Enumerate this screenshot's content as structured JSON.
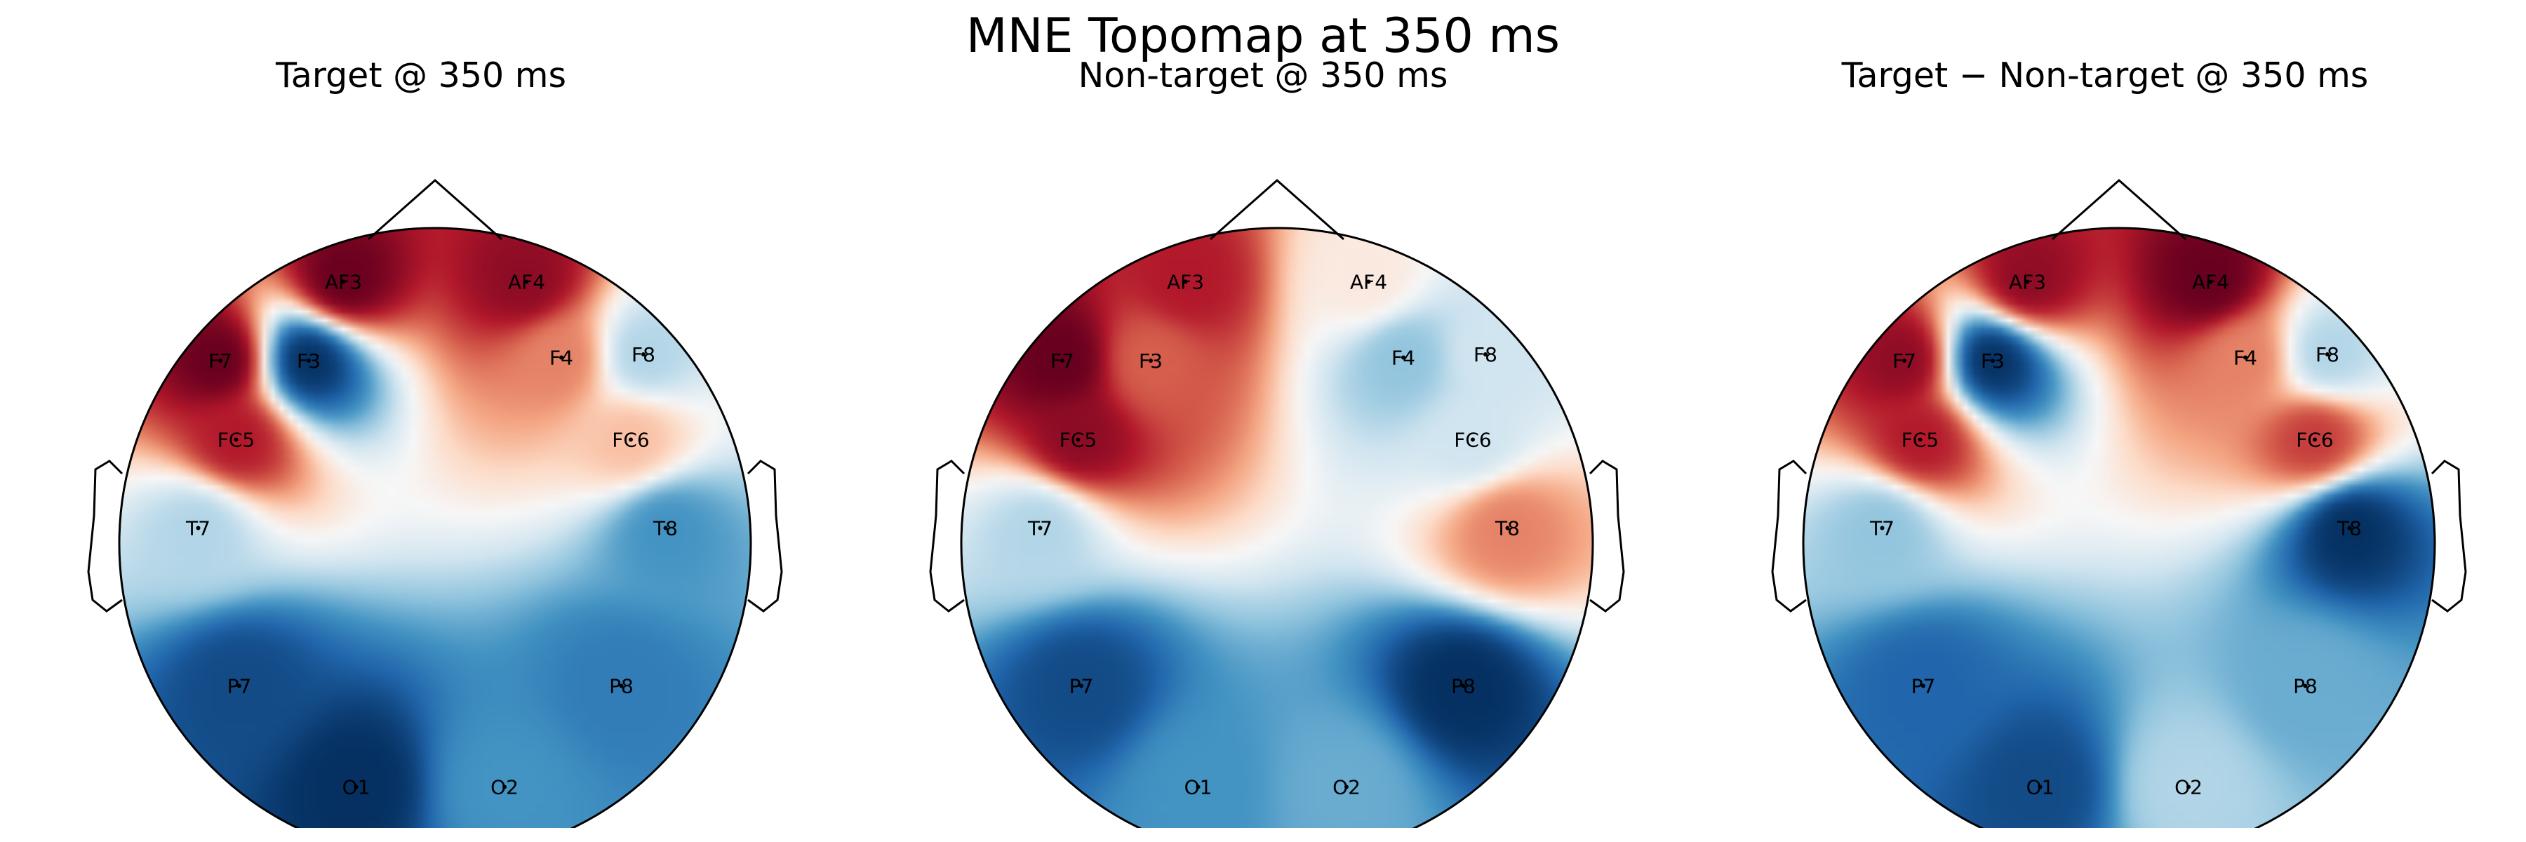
{
  "title": "MNE Topomap at 350 ms",
  "colormap": {
    "name": "RdBu_r",
    "stops": [
      "#053061",
      "#2166ac",
      "#4393c3",
      "#92c5de",
      "#d1e5f0",
      "#f7f7f7",
      "#fddbc7",
      "#f4a582",
      "#d6604d",
      "#b2182b",
      "#67001f"
    ]
  },
  "chart_data": [
    {
      "type": "heatmap",
      "title": "Target @ 350 ms",
      "channels": [
        "AF3",
        "AF4",
        "F7",
        "F3",
        "F4",
        "F8",
        "FC5",
        "FC6",
        "T7",
        "T8",
        "P7",
        "P8",
        "O1",
        "O2"
      ],
      "values": [
        1.0,
        0.9,
        1.0,
        -1.0,
        0.5,
        -0.3,
        0.8,
        0.3,
        -0.3,
        -0.6,
        -0.9,
        -0.7,
        -1.0,
        -0.6
      ]
    },
    {
      "type": "heatmap",
      "title": "Non-target @ 350 ms",
      "channels": [
        "AF3",
        "AF4",
        "F7",
        "F3",
        "F4",
        "F8",
        "FC5",
        "FC6",
        "T7",
        "T8",
        "P7",
        "P8",
        "O1",
        "O2"
      ],
      "values": [
        0.8,
        0.1,
        1.0,
        0.6,
        -0.4,
        -0.2,
        0.9,
        -0.2,
        -0.3,
        0.5,
        -0.9,
        -1.0,
        -0.6,
        -0.5
      ]
    },
    {
      "type": "heatmap",
      "title": "Target − Non-target @ 350 ms",
      "channels": [
        "AF3",
        "AF4",
        "F7",
        "F3",
        "F4",
        "F8",
        "FC5",
        "FC6",
        "T7",
        "T8",
        "P7",
        "P8",
        "O1",
        "O2"
      ],
      "values": [
        0.9,
        1.0,
        0.9,
        -1.0,
        0.5,
        -0.3,
        0.8,
        0.7,
        -0.4,
        -1.0,
        -0.8,
        -0.5,
        -0.9,
        -0.3
      ]
    }
  ]
}
